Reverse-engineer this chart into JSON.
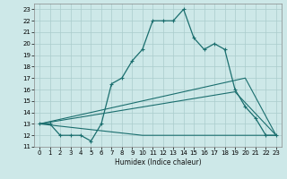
{
  "xlabel": "Humidex (Indice chaleur)",
  "background_color": "#cde8e8",
  "grid_color": "#aacccc",
  "line_color": "#1a6e6e",
  "xlim": [
    -0.5,
    23.5
  ],
  "ylim": [
    11,
    23.5
  ],
  "xticks": [
    0,
    1,
    2,
    3,
    4,
    5,
    6,
    7,
    8,
    9,
    10,
    11,
    12,
    13,
    14,
    15,
    16,
    17,
    18,
    19,
    20,
    21,
    22,
    23
  ],
  "yticks": [
    11,
    12,
    13,
    14,
    15,
    16,
    17,
    18,
    19,
    20,
    21,
    22,
    23
  ],
  "line1_x": [
    0,
    1,
    2,
    3,
    4,
    5,
    6,
    7,
    8,
    9,
    10,
    11,
    12,
    13,
    14,
    15,
    16,
    17,
    18,
    19,
    20,
    21,
    22,
    23
  ],
  "line1_y": [
    13,
    13,
    12,
    12,
    12,
    11.5,
    13,
    16.5,
    17,
    18.5,
    19.5,
    22,
    22,
    22,
    23,
    20.5,
    19.5,
    20,
    19.5,
    16,
    14.5,
    13.5,
    12,
    12
  ],
  "line2_x": [
    0,
    10,
    23
  ],
  "line2_y": [
    13,
    12,
    12
  ],
  "line3_x": [
    0,
    20,
    23
  ],
  "line3_y": [
    13,
    17,
    12
  ],
  "line4_x": [
    0,
    19,
    23
  ],
  "line4_y": [
    13,
    15.8,
    12
  ]
}
